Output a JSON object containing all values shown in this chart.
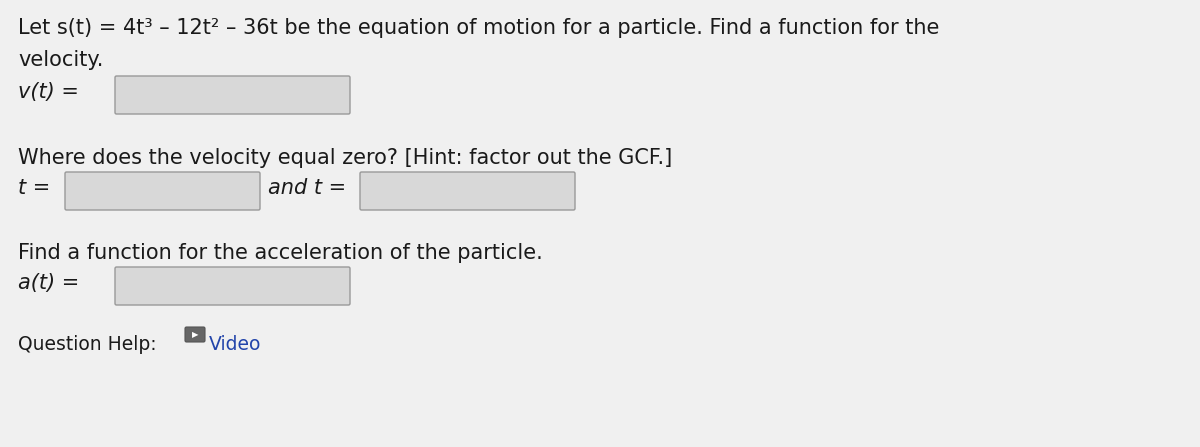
{
  "background_color": "#f0f0f0",
  "text_color": "#1a1a1a",
  "line1": "Let s(t) = 4t³ – 12t² – 36t be the equation of motion for a particle. Find a function for the",
  "line2": "velocity.",
  "label_vt": "v(t) =",
  "label_where": "Where does the velocity equal zero? [Hint: factor out the GCF.]",
  "label_t1": "t =",
  "label_and": "and t =",
  "label_accel": "Find a function for the acceleration of the particle.",
  "label_at": "a(t) =",
  "label_help": "Question Help:",
  "label_video": "Video",
  "box_fill": "#d8d8d8",
  "box_edge": "#999999",
  "video_box_fill": "#555555",
  "video_box_edge": "#333333",
  "video_text_color": "#2244aa",
  "font_size_main": 15.0,
  "font_size_math": 15.0,
  "font_size_help": 13.5,
  "fig_width": 12.0,
  "fig_height": 4.47,
  "dpi": 100
}
